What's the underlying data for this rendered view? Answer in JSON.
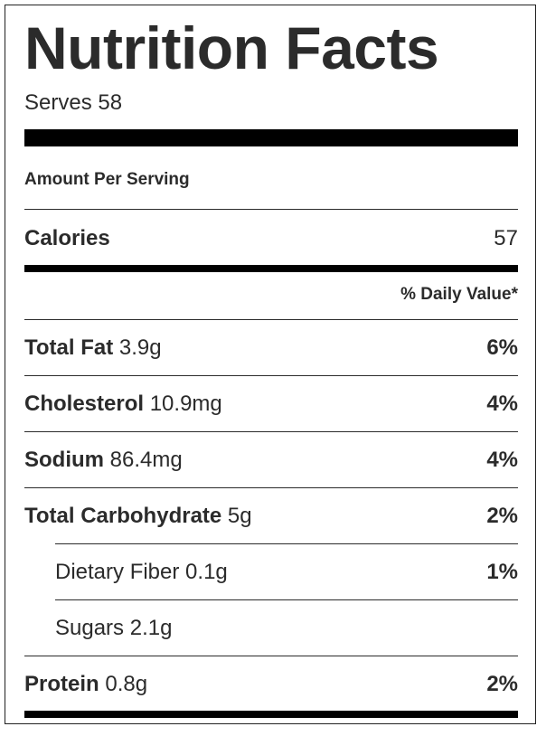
{
  "label": {
    "title": "Nutrition Facts",
    "serves": "Serves 58",
    "amount_per_serving": "Amount Per Serving",
    "calories_label": "Calories",
    "calories_value": "57",
    "daily_value_header": "% Daily Value*",
    "rows": [
      {
        "name": "Total Fat",
        "amount": "3.9g",
        "percent": "6%"
      },
      {
        "name": "Cholesterol",
        "amount": "10.9mg",
        "percent": "4%"
      },
      {
        "name": "Sodium",
        "amount": "86.4mg",
        "percent": "4%"
      },
      {
        "name": "Total Carbohydrate",
        "amount": "5g",
        "percent": "2%"
      },
      {
        "name": "Dietary Fiber",
        "amount": "0.1g",
        "percent": "1%"
      },
      {
        "name": "Sugars",
        "amount": "2.1g",
        "percent": ""
      },
      {
        "name": "Protein",
        "amount": "0.8g",
        "percent": "2%"
      }
    ]
  }
}
